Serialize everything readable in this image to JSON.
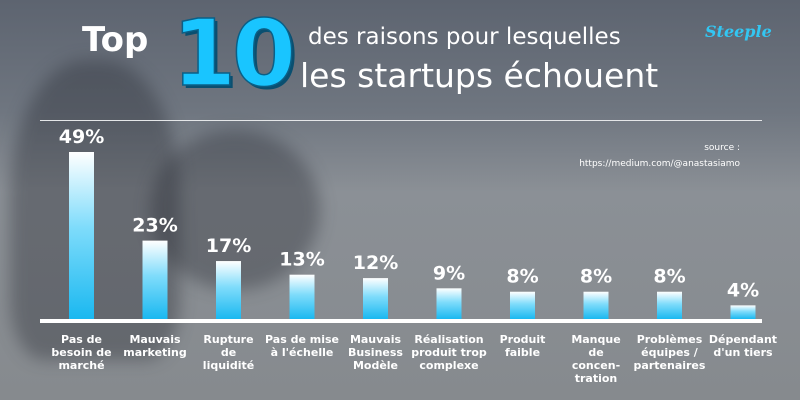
{
  "header": {
    "top": "Top",
    "number": "10",
    "line1": "des raisons pour lesquelles",
    "line2": "les startups échouent",
    "logo": "Steeple"
  },
  "source": {
    "label": "source :",
    "url": "https://medium.com/@anastasiamo"
  },
  "colors": {
    "accent": "#19c5ff",
    "bar_top": "#ffffff",
    "bar_bottom": "#1ab8f0",
    "text": "#ffffff"
  },
  "chart_data": {
    "type": "bar",
    "title": "Top 10 des raisons pour lesquelles les startups échouent",
    "categories": [
      [
        "Pas de",
        "besoin de",
        "marché"
      ],
      [
        "Mauvais",
        "marketing"
      ],
      [
        "Rupture",
        "de",
        "liquidité"
      ],
      [
        "Pas de mise",
        "à l'échelle"
      ],
      [
        "Mauvais",
        "Business",
        "Modèle"
      ],
      [
        "Réalisation",
        "produit trop",
        "complexe"
      ],
      [
        "Produit",
        "faible"
      ],
      [
        "Manque",
        "de",
        "concen-",
        "tration"
      ],
      [
        "Problèmes",
        "équipes /",
        "partenaires"
      ],
      [
        "Dépendant",
        "d'un tiers"
      ]
    ],
    "values": [
      49,
      23,
      17,
      13,
      12,
      9,
      8,
      8,
      8,
      4
    ],
    "value_labels": [
      "49%",
      "23%",
      "17%",
      "13%",
      "12%",
      "9%",
      "8%",
      "8%",
      "8%",
      "4%"
    ],
    "unit": "%",
    "ylim": [
      0,
      49
    ],
    "grid": false,
    "legend": "none"
  }
}
